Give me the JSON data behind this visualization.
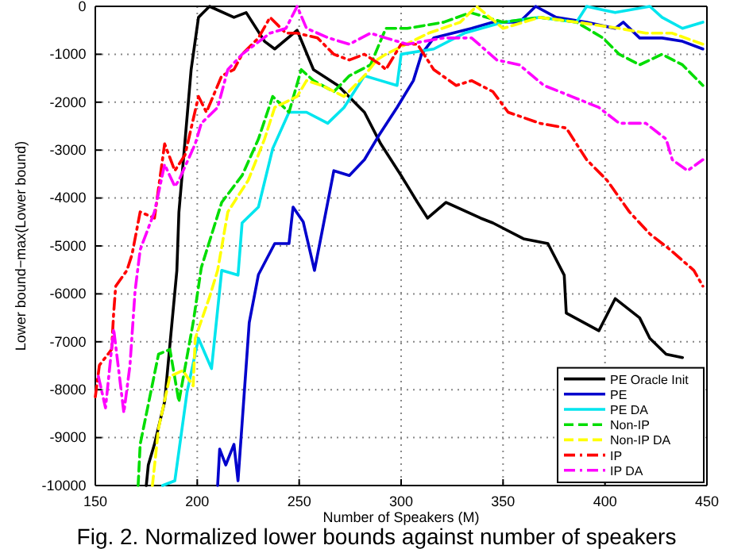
{
  "chart_data": {
    "type": "line",
    "xlabel": "Number of Speakers (M)",
    "ylabel": "Lower bound−max(Lower bound)",
    "annotations": [
      "Fig. 2. Normalized lower bounds against number of speakers"
    ],
    "xlim": [
      150,
      450
    ],
    "xticks": [
      150,
      200,
      250,
      300,
      350,
      400,
      450
    ],
    "ylim": [
      -10000,
      0
    ],
    "yticks": [
      -10000,
      -9000,
      -8000,
      -7000,
      -6000,
      -5000,
      -4000,
      -3000,
      -2000,
      -1000,
      0
    ],
    "grid": true,
    "legend": "bottom right",
    "marker": "none",
    "series": [
      {
        "name": "PE Oracle Init",
        "color": "#000000",
        "line_style": "solid",
        "x": [
          175,
          176,
          179,
          184,
          186.6,
          190,
          191,
          197,
          200.6,
          206,
          218,
          224,
          233,
          238,
          249,
          257,
          269,
          282,
          290,
          300,
          308,
          313,
          322,
          339,
          345,
          360,
          372,
          380,
          381,
          397,
          405,
          417,
          422,
          430,
          438
        ],
        "values": [
          -10000,
          -9570,
          -9140,
          -8250,
          -7060,
          -5510,
          -4300,
          -1320,
          -230,
          0,
          -230,
          -130,
          -730,
          -890,
          -500,
          -1320,
          -1650,
          -2210,
          -2870,
          -3530,
          -4090,
          -4420,
          -4090,
          -4420,
          -4520,
          -4850,
          -4950,
          -5610,
          -6400,
          -6770,
          -6100,
          -6500,
          -6930,
          -7260,
          -7330
        ]
      },
      {
        "name": "PE",
        "color": "#0000cc",
        "line_style": "solid",
        "x": [
          210,
          211,
          214,
          218,
          220,
          225.5,
          230,
          238,
          245,
          247,
          252,
          257.5,
          261,
          267,
          274.6,
          282,
          289,
          298,
          306,
          310,
          316,
          334.6,
          345,
          358,
          366,
          376,
          391,
          405,
          409,
          417,
          428,
          438,
          448
        ],
        "values": [
          -10000,
          -9240,
          -9570,
          -9140,
          -9900,
          -6600,
          -5600,
          -4950,
          -4950,
          -4190,
          -4500,
          -5510,
          -4750,
          -3430,
          -3530,
          -3200,
          -2700,
          -2110,
          -1550,
          -1000,
          -660,
          -460,
          -330,
          -330,
          0,
          -230,
          -330,
          -460,
          -330,
          -660,
          -660,
          -730,
          -890
        ]
      },
      {
        "name": "PE DA",
        "color": "#00e5ee",
        "line_style": "solid",
        "x": [
          183,
          189,
          195,
          200.6,
          207,
          212,
          220,
          222,
          230,
          237,
          245,
          253.6,
          264,
          272,
          282,
          290,
          298,
          300,
          316,
          331,
          350,
          368,
          386,
          391,
          405,
          422,
          428,
          438,
          448
        ],
        "values": [
          -10000,
          -9900,
          -8050,
          -6930,
          -7560,
          -5510,
          -5610,
          -4520,
          -4190,
          -2970,
          -2210,
          -2210,
          -2440,
          -2110,
          -1450,
          -1550,
          -1650,
          -1000,
          -890,
          -560,
          -330,
          -230,
          -330,
          0,
          -130,
          0,
          -230,
          -460,
          -330
        ]
      },
      {
        "name": "Non-IP",
        "color": "#00dd00",
        "line_style": "dashed",
        "x": [
          171,
          172,
          181,
          186.6,
          191,
          198,
          202,
          212,
          222,
          230,
          237,
          245,
          251,
          257,
          267,
          274.6,
          285,
          292.5,
          303,
          321,
          334,
          350,
          368,
          386,
          399,
          407,
          417,
          428,
          438,
          448
        ],
        "values": [
          -10000,
          -9140,
          -7260,
          -7160,
          -8250,
          -6600,
          -5450,
          -4090,
          -3530,
          -2770,
          -1880,
          -2210,
          -1320,
          -1550,
          -1780,
          -1450,
          -1220,
          -460,
          -460,
          -330,
          -130,
          -330,
          -230,
          -330,
          -660,
          -1000,
          -1220,
          -1000,
          -1220,
          -1650
        ]
      },
      {
        "name": "Non-IP DA",
        "color": "#ffff00",
        "line_style": "dashed",
        "x": [
          178,
          181,
          186.6,
          193,
          198,
          199,
          206,
          210,
          215,
          225,
          233,
          238,
          249,
          253.6,
          261,
          272,
          282,
          288,
          292.5,
          313.5,
          329,
          337,
          350,
          368,
          386,
          407,
          420,
          433,
          448
        ],
        "values": [
          -10000,
          -8810,
          -7720,
          -7600,
          -7920,
          -6930,
          -6070,
          -5510,
          -4290,
          -3630,
          -2770,
          -2110,
          -1880,
          -1550,
          -1650,
          -1880,
          -1450,
          -1120,
          -1000,
          -560,
          -330,
          0,
          -460,
          -230,
          -330,
          -460,
          -560,
          -560,
          -790
        ]
      },
      {
        "name": "IP",
        "color": "#ff0000",
        "line_style": "dashdot",
        "x": [
          150,
          152,
          158,
          159,
          160,
          165.5,
          168,
          172,
          179,
          184,
          189,
          194,
          200.6,
          204.5,
          212,
          218,
          222,
          230,
          235.7,
          243.5,
          249,
          259,
          267,
          274.6,
          282,
          290,
          292.5,
          300,
          308,
          316,
          327,
          334.6,
          345,
          352.5,
          368,
          381,
          391,
          401,
          412,
          422,
          432,
          443.6,
          448
        ],
        "values": [
          -8150,
          -7490,
          -7160,
          -6400,
          -5840,
          -5510,
          -5180,
          -4290,
          -4420,
          -2870,
          -3430,
          -3100,
          -1880,
          -2210,
          -1450,
          -1320,
          -1000,
          -660,
          -230,
          -560,
          -560,
          -660,
          -1000,
          -1120,
          -1000,
          -1220,
          -1320,
          -790,
          -790,
          -1320,
          -1650,
          -1550,
          -1780,
          -2210,
          -2440,
          -2540,
          -3200,
          -3630,
          -4290,
          -4750,
          -5080,
          -5510,
          -5840
        ]
      },
      {
        "name": "IP DA",
        "color": "#ff00ff",
        "line_style": "dashdot",
        "x": [
          151.5,
          155,
          159,
          164,
          167,
          169.5,
          172,
          179,
          184,
          189,
          191,
          199,
          202,
          210,
          215,
          222,
          235.7,
          243.5,
          249,
          253.6,
          264.5,
          274.6,
          285,
          292.5,
          303,
          321,
          334.6,
          347,
          358,
          370,
          383.6,
          397,
          407,
          420,
          430,
          433,
          440.5,
          448
        ],
        "values": [
          -7720,
          -8380,
          -6730,
          -8480,
          -7490,
          -5940,
          -5080,
          -4290,
          -3300,
          -3760,
          -3630,
          -2870,
          -2440,
          -2110,
          -1320,
          -1000,
          -560,
          -460,
          0,
          -460,
          -660,
          -790,
          -560,
          -660,
          -790,
          -660,
          -660,
          -1120,
          -1220,
          -1650,
          -1880,
          -2110,
          -2440,
          -2440,
          -2770,
          -3200,
          -3430,
          -3200
        ]
      }
    ]
  }
}
